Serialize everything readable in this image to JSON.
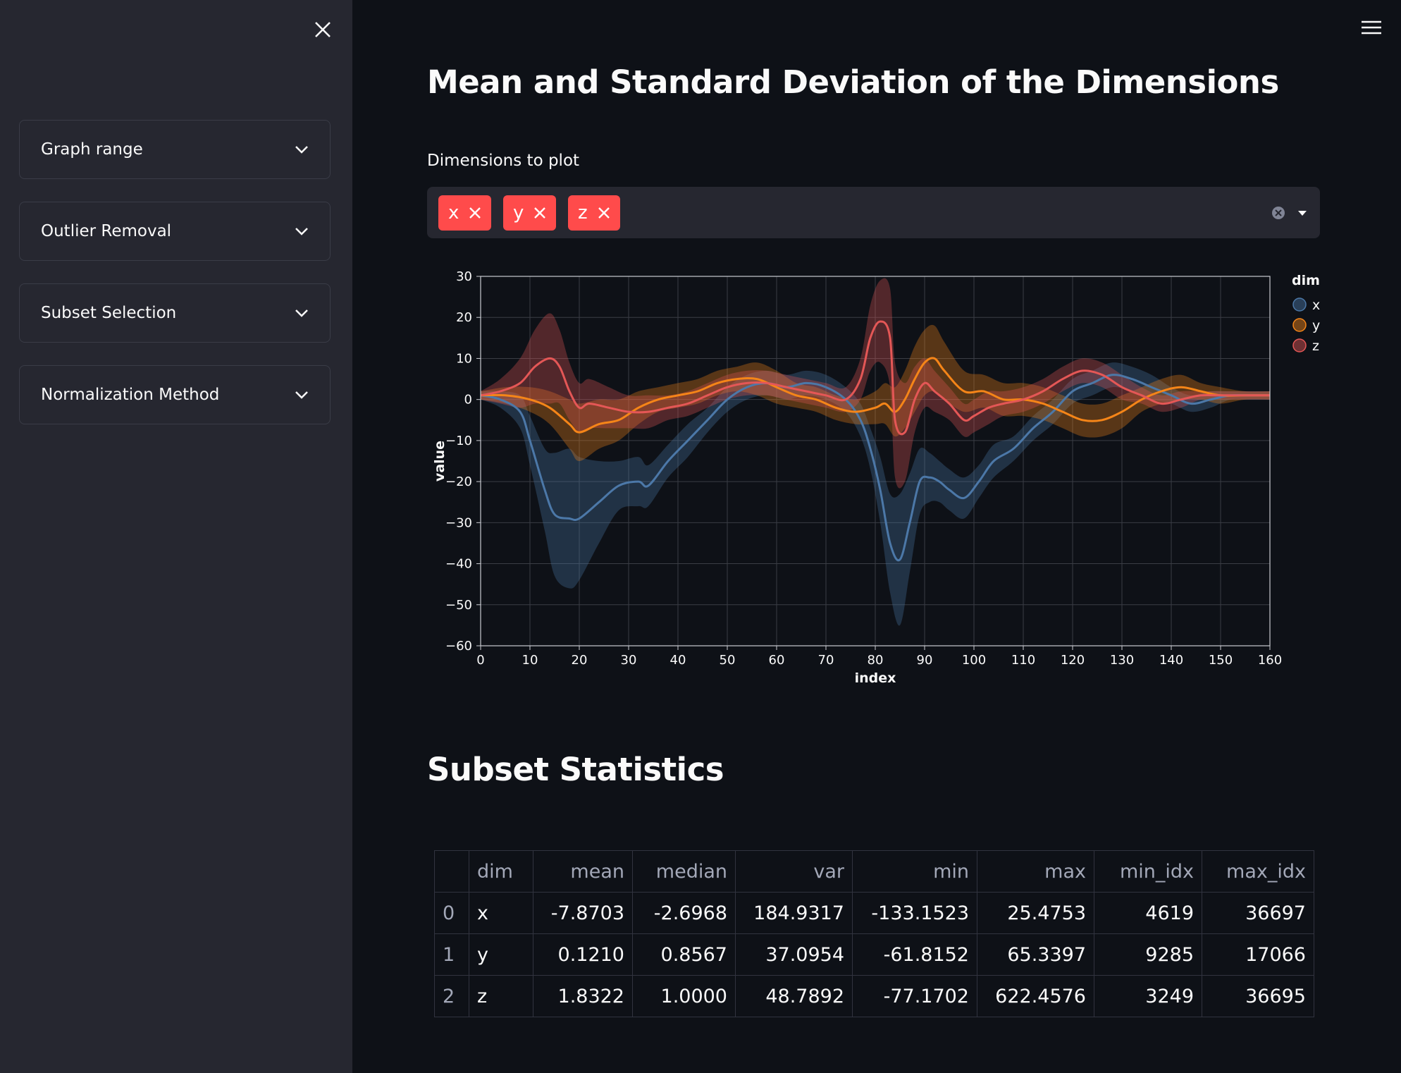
{
  "sidebar": {
    "expanders": [
      {
        "label": "Graph range"
      },
      {
        "label": "Outlier Removal"
      },
      {
        "label": "Subset Selection"
      },
      {
        "label": "Normalization Method"
      }
    ]
  },
  "main": {
    "title": "Mean and Standard Deviation of the Dimensions",
    "multiselect": {
      "label": "Dimensions to plot",
      "selected": [
        "x",
        "y",
        "z"
      ]
    },
    "stats_title": "Subset Statistics"
  },
  "colors": {
    "accent": "#ff4b4b",
    "x": "#4c78a8",
    "y": "#f58518",
    "z": "#e45756",
    "sidebar_bg": "#262730",
    "page_bg": "#0e1117"
  },
  "chart_data": {
    "type": "area",
    "title": "",
    "xlabel": "index",
    "ylabel": "value",
    "xlim": [
      0,
      160
    ],
    "ylim": [
      -60,
      30
    ],
    "xticks": [
      0,
      10,
      20,
      30,
      40,
      50,
      60,
      70,
      80,
      90,
      100,
      110,
      120,
      130,
      140,
      150,
      160
    ],
    "yticks": [
      30,
      20,
      10,
      0,
      -10,
      -20,
      -30,
      -40,
      -50,
      -60
    ],
    "grid": true,
    "legend": {
      "title": "dim",
      "position": "top-right",
      "items": [
        "x",
        "y",
        "z"
      ]
    },
    "series": [
      {
        "name": "x",
        "x": [
          0,
          4,
          8,
          10,
          13,
          15,
          18,
          20,
          24,
          28,
          32,
          34,
          38,
          42,
          46,
          50,
          54,
          58,
          62,
          66,
          70,
          74,
          77,
          79,
          81,
          83,
          85,
          87,
          89,
          91,
          93,
          95,
          98,
          101,
          104,
          108,
          112,
          116,
          120,
          124,
          128,
          132,
          136,
          140,
          144,
          148,
          152,
          156,
          160
        ],
        "mean": [
          1,
          0,
          -3,
          -10,
          -22,
          -28,
          -29,
          -29,
          -25,
          -21,
          -20,
          -21,
          -15,
          -10,
          -5,
          0,
          3,
          4,
          3,
          4,
          3,
          0,
          -5,
          -12,
          -22,
          -35,
          -39,
          -30,
          -20,
          -19,
          -20,
          -22,
          -24,
          -20,
          -15,
          -12,
          -7,
          -3,
          2,
          4,
          6,
          5,
          3,
          1,
          -1,
          0,
          1,
          1,
          1
        ],
        "sd": [
          1,
          2,
          4,
          6,
          10,
          15,
          17,
          15,
          10,
          6,
          6,
          5,
          4,
          4,
          3,
          3,
          3,
          3,
          3,
          3,
          3,
          3,
          4,
          5,
          8,
          12,
          16,
          12,
          8,
          6,
          5,
          5,
          5,
          4,
          4,
          3,
          3,
          3,
          3,
          3,
          3,
          3,
          3,
          2,
          2,
          2,
          1,
          1,
          1
        ]
      },
      {
        "name": "y",
        "x": [
          0,
          5,
          10,
          14,
          18,
          20,
          24,
          28,
          32,
          36,
          40,
          44,
          48,
          52,
          56,
          60,
          64,
          68,
          72,
          76,
          80,
          82,
          84,
          86,
          88,
          90,
          92,
          94,
          98,
          102,
          106,
          110,
          114,
          118,
          122,
          126,
          130,
          134,
          138,
          142,
          146,
          150,
          155,
          160
        ],
        "mean": [
          1,
          1,
          0,
          -2,
          -6,
          -8,
          -6,
          -5,
          -2,
          0,
          1,
          2,
          4,
          5,
          5,
          3,
          1,
          0,
          -2,
          -3,
          -2,
          -1,
          -3,
          0,
          5,
          9,
          10,
          7,
          2,
          2,
          0,
          0,
          -1,
          -3,
          -5,
          -5,
          -3,
          0,
          2,
          3,
          2,
          1,
          1,
          1
        ],
        "sd": [
          1,
          2,
          3,
          4,
          6,
          7,
          6,
          5,
          4,
          3,
          3,
          3,
          3,
          3,
          4,
          4,
          3,
          3,
          3,
          3,
          4,
          5,
          6,
          7,
          8,
          8,
          8,
          7,
          5,
          4,
          4,
          4,
          4,
          4,
          4,
          4,
          4,
          3,
          3,
          3,
          2,
          2,
          1,
          1
        ]
      },
      {
        "name": "z",
        "x": [
          0,
          4,
          8,
          11,
          14,
          16,
          18,
          20,
          22,
          26,
          30,
          34,
          38,
          42,
          46,
          50,
          54,
          58,
          62,
          66,
          70,
          74,
          77,
          79,
          81,
          83,
          84,
          86,
          88,
          90,
          92,
          95,
          98,
          100,
          103,
          106,
          110,
          114,
          118,
          122,
          126,
          130,
          134,
          138,
          142,
          146,
          150,
          155,
          160
        ],
        "mean": [
          1,
          2,
          4,
          8,
          10,
          8,
          2,
          -2,
          -1,
          -2,
          -3,
          -3,
          -2,
          -1,
          1,
          3,
          4,
          4,
          3,
          2,
          1,
          0,
          5,
          15,
          19,
          15,
          -5,
          -8,
          0,
          4,
          2,
          -1,
          -5,
          -4,
          -2,
          -1,
          0,
          2,
          5,
          7,
          6,
          3,
          1,
          -1,
          0,
          1,
          1,
          1,
          1
        ],
        "sd": [
          1,
          3,
          6,
          9,
          11,
          9,
          7,
          6,
          6,
          5,
          4,
          4,
          3,
          3,
          3,
          3,
          3,
          3,
          3,
          3,
          3,
          3,
          5,
          8,
          10,
          12,
          14,
          12,
          8,
          6,
          5,
          4,
          4,
          4,
          4,
          3,
          3,
          3,
          3,
          3,
          3,
          3,
          2,
          2,
          2,
          1,
          1,
          1,
          1
        ]
      }
    ]
  },
  "stats_table": {
    "headers": [
      "",
      "dim",
      "mean",
      "median",
      "var",
      "min",
      "max",
      "min_idx",
      "max_idx"
    ],
    "rows": [
      [
        "0",
        "x",
        "-7.8703",
        "-2.6968",
        "184.9317",
        "-133.1523",
        "25.4753",
        "4619",
        "36697"
      ],
      [
        "1",
        "y",
        "0.1210",
        "0.8567",
        "37.0954",
        "-61.8152",
        "65.3397",
        "9285",
        "17066"
      ],
      [
        "2",
        "z",
        "1.8322",
        "1.0000",
        "48.7892",
        "-77.1702",
        "622.4576",
        "3249",
        "36695"
      ]
    ]
  }
}
